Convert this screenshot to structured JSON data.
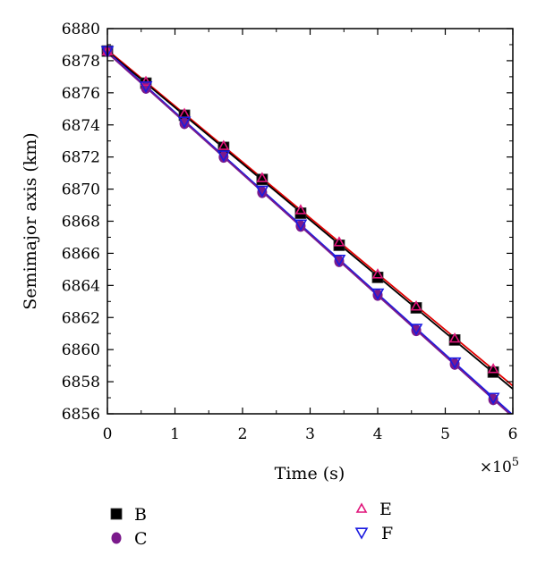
{
  "chart_data": {
    "type": "scatter",
    "title": "",
    "xlabel": "Time (s)",
    "ylabel": "Semimajor axis (km)",
    "x_multiplier_label": "×10",
    "x_multiplier_exponent": "5",
    "xlim": [
      0,
      6
    ],
    "ylim": [
      6856,
      6880
    ],
    "x_ticks": [
      0,
      1,
      2,
      3,
      4,
      5,
      6
    ],
    "y_ticks": [
      6856,
      6858,
      6860,
      6862,
      6864,
      6866,
      6868,
      6870,
      6872,
      6874,
      6876,
      6878,
      6880
    ],
    "grid": false,
    "legend_position": "bottom",
    "x": [
      0,
      0.57,
      1.14,
      1.72,
      2.29,
      2.86,
      3.43,
      4.0,
      4.57,
      5.14,
      5.71
    ],
    "series": [
      {
        "name": "B",
        "marker": "square",
        "color": "#000000",
        "fit_line_color": "#000000",
        "values": [
          6878.6,
          6876.6,
          6874.6,
          6872.6,
          6870.6,
          6868.5,
          6866.5,
          6864.5,
          6862.6,
          6860.6,
          6858.6
        ]
      },
      {
        "name": "C",
        "marker": "circle",
        "color": "#7b1a8c",
        "fit_line_color": "#7b1a8c",
        "values": [
          6878.6,
          6876.3,
          6874.1,
          6872.0,
          6869.8,
          6867.7,
          6865.5,
          6863.4,
          6861.2,
          6859.1,
          6856.9
        ]
      },
      {
        "name": "E",
        "marker": "triangle-up",
        "color": "#e0147a",
        "fit_line_color": "#e00000",
        "values": [
          6878.6,
          6876.7,
          6874.7,
          6872.7,
          6870.7,
          6868.7,
          6866.7,
          6864.7,
          6862.7,
          6860.7,
          6858.8
        ]
      },
      {
        "name": "F",
        "marker": "triangle-down",
        "color": "#1a1ae0",
        "fit_line_color": "#1a1ae0",
        "values": [
          6878.6,
          6876.4,
          6874.2,
          6872.1,
          6869.9,
          6867.8,
          6865.6,
          6863.5,
          6861.3,
          6859.2,
          6857.0
        ]
      }
    ]
  }
}
